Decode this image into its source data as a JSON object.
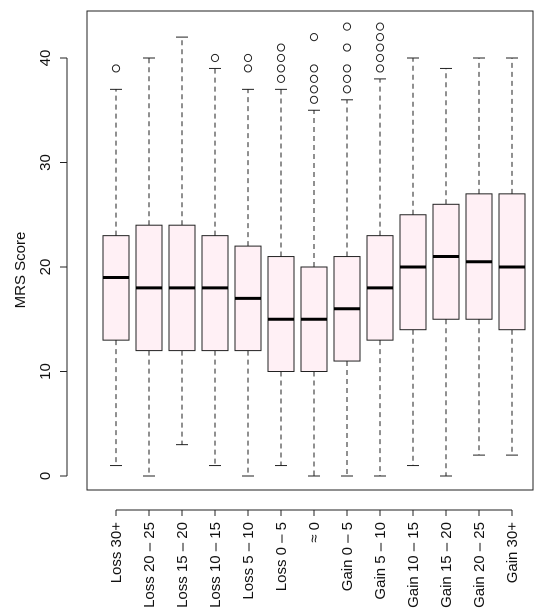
{
  "chart_data": {
    "type": "boxplot",
    "title": "",
    "xlabel": "",
    "ylabel": "MRS Score",
    "ylim": [
      0,
      40
    ],
    "yticks": [
      0,
      10,
      20,
      30,
      40
    ],
    "box_fill": "#fff0f5",
    "box_stroke": "#222222",
    "grid": false,
    "categories": [
      "Loss 30+",
      "Loss 20 – 25",
      "Loss 15 – 20",
      "Loss 10 – 15",
      "Loss 5 – 10",
      "Loss 0 – 5",
      "≈ 0",
      "Gain 0 – 5",
      "Gain 5 – 10",
      "Gain 10 – 15",
      "Gain 15 – 20",
      "Gain 20 – 25",
      "Gain 30+"
    ],
    "boxes": [
      {
        "whisker_low": 1,
        "q1": 13,
        "median": 19,
        "q3": 23,
        "whisker_high": 37,
        "outliers": [
          39
        ]
      },
      {
        "whisker_low": 0,
        "q1": 12,
        "median": 18,
        "q3": 24,
        "whisker_high": 40,
        "outliers": []
      },
      {
        "whisker_low": 3,
        "q1": 12,
        "median": 18,
        "q3": 24,
        "whisker_high": 42,
        "outliers": []
      },
      {
        "whisker_low": 1,
        "q1": 12,
        "median": 18,
        "q3": 23,
        "whisker_high": 39,
        "outliers": [
          40
        ]
      },
      {
        "whisker_low": 0,
        "q1": 12,
        "median": 17,
        "q3": 22,
        "whisker_high": 37,
        "outliers": [
          39,
          40
        ]
      },
      {
        "whisker_low": 1,
        "q1": 10,
        "median": 15,
        "q3": 21,
        "whisker_high": 37,
        "outliers": [
          38,
          39,
          40,
          41
        ]
      },
      {
        "whisker_low": 0,
        "q1": 10,
        "median": 15,
        "q3": 20,
        "whisker_high": 35,
        "outliers": [
          36,
          37,
          38,
          39,
          42
        ]
      },
      {
        "whisker_low": 0,
        "q1": 11,
        "median": 16,
        "q3": 21,
        "whisker_high": 36,
        "outliers": [
          37,
          38,
          39,
          41,
          43
        ]
      },
      {
        "whisker_low": 0,
        "q1": 13,
        "median": 18,
        "q3": 23,
        "whisker_high": 38,
        "outliers": [
          39,
          40,
          41,
          42,
          43
        ]
      },
      {
        "whisker_low": 1,
        "q1": 14,
        "median": 20,
        "q3": 25,
        "whisker_high": 40,
        "outliers": []
      },
      {
        "whisker_low": 0,
        "q1": 15,
        "median": 21,
        "q3": 26,
        "whisker_high": 39,
        "outliers": []
      },
      {
        "whisker_low": 2,
        "q1": 15,
        "median": 20.5,
        "q3": 27,
        "whisker_high": 40,
        "outliers": []
      },
      {
        "whisker_low": 2,
        "q1": 14,
        "median": 20,
        "q3": 27,
        "whisker_high": 40,
        "outliers": []
      }
    ]
  }
}
